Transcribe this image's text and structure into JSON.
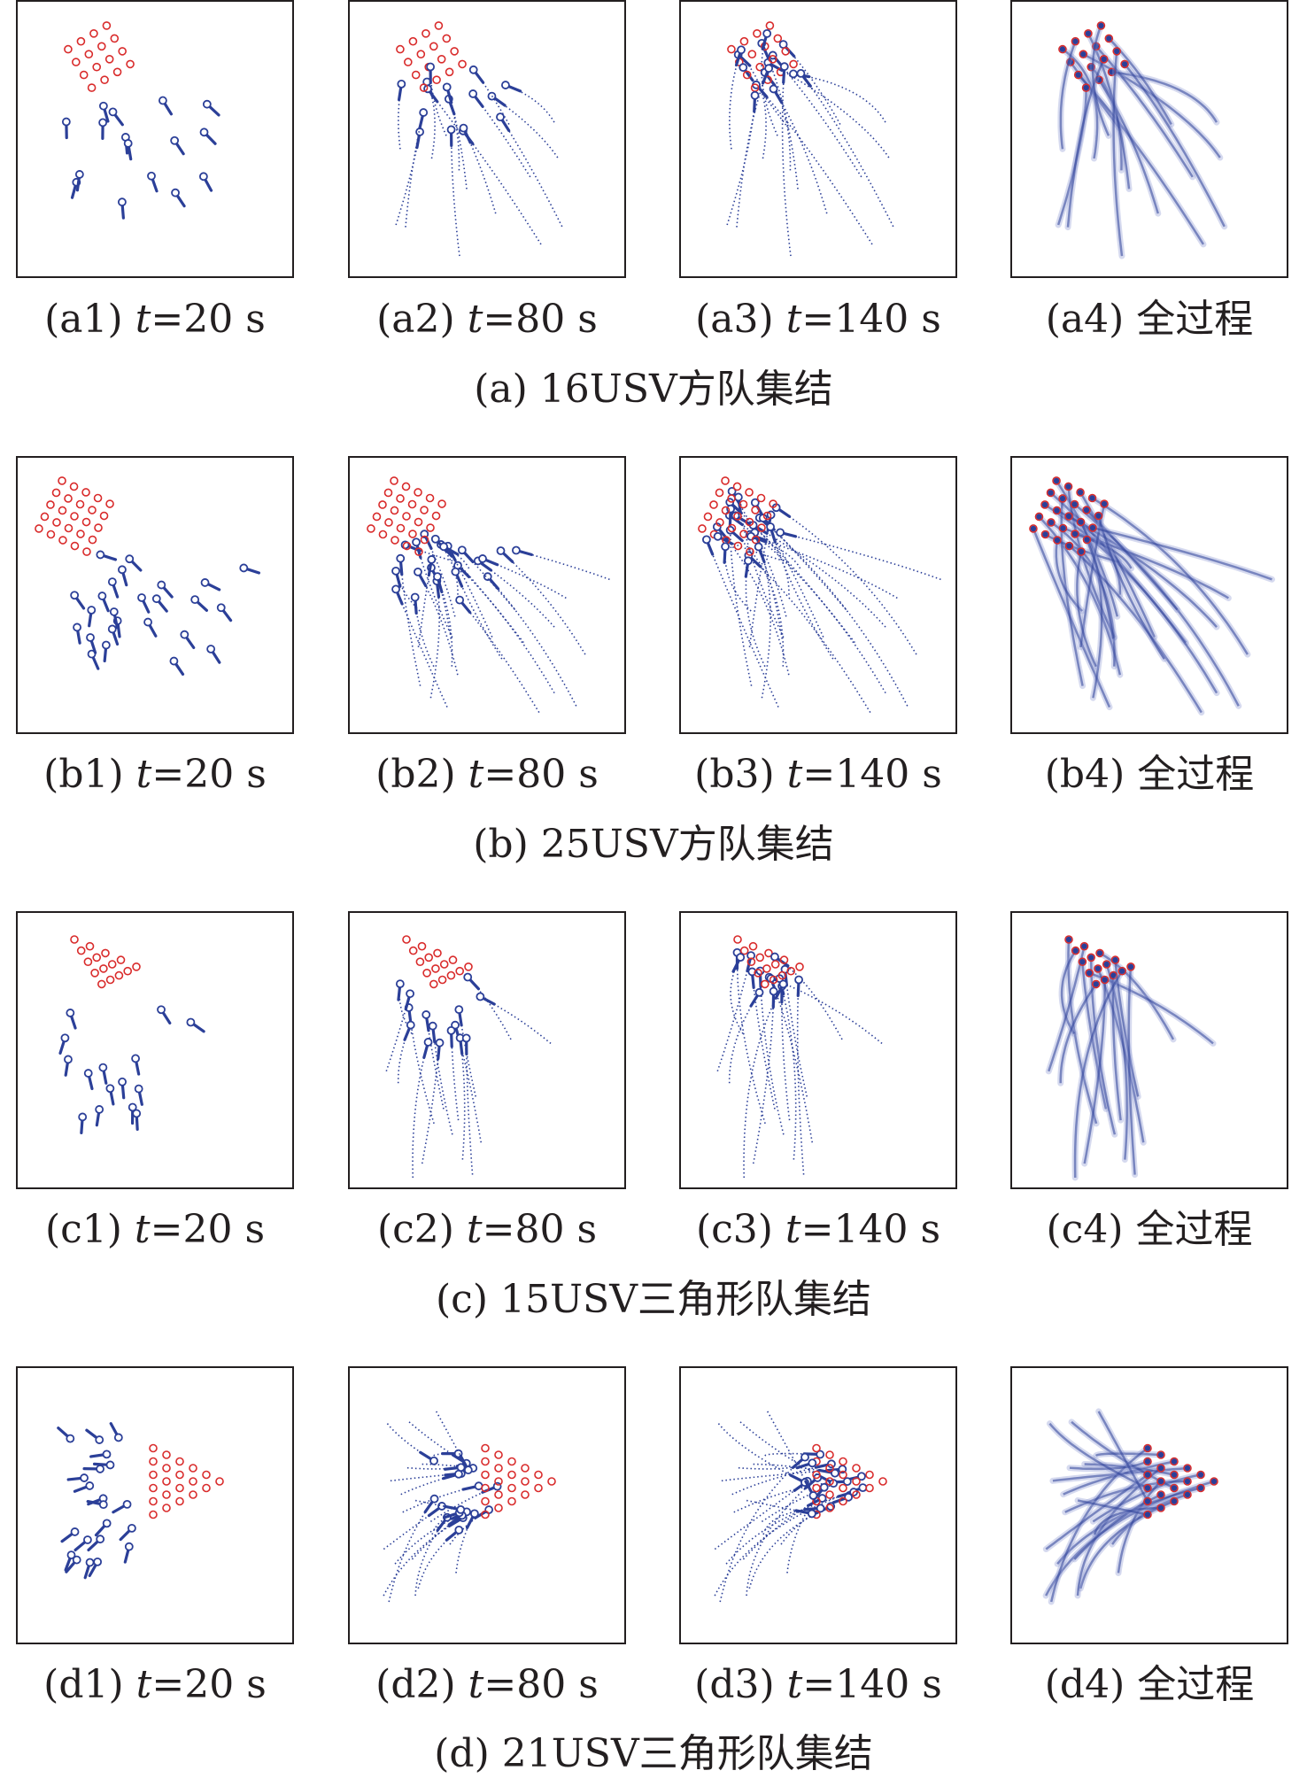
{
  "rows": [
    {
      "id": "a",
      "caption": "(a) 16USV方队集结",
      "panels": [
        {
          "label": "(a1)",
          "t": "20"
        },
        {
          "label": "(a2)",
          "t": "80"
        },
        {
          "label": "(a3)",
          "t": "140"
        },
        {
          "label": "(a4)",
          "text": "全过程"
        }
      ]
    },
    {
      "id": "b",
      "caption": "(b) 25USV方队集结",
      "panels": [
        {
          "label": "(b1)",
          "t": "20"
        },
        {
          "label": "(b2)",
          "t": "80"
        },
        {
          "label": "(b3)",
          "t": "140"
        },
        {
          "label": "(b4)",
          "text": "全过程"
        }
      ]
    },
    {
      "id": "c",
      "caption": "(c) 15USV三角形队集结",
      "panels": [
        {
          "label": "(c1)",
          "t": "20"
        },
        {
          "label": "(c2)",
          "t": "80"
        },
        {
          "label": "(c3)",
          "t": "140"
        },
        {
          "label": "(c4)",
          "text": "全过程"
        }
      ]
    },
    {
      "id": "d",
      "caption": "(d) 21USV三角形队集结",
      "panels": [
        {
          "label": "(d1)",
          "t": "20"
        },
        {
          "label": "(d2)",
          "t": "80"
        },
        {
          "label": "(d3)",
          "t": "140"
        },
        {
          "label": "(d4)",
          "text": "全过程"
        }
      ]
    }
  ],
  "time_symbol": "t",
  "time_unit": "s",
  "colors": {
    "usv_blue": "#2b3f98",
    "target_red": "#d92b2b",
    "border": "#231f20",
    "trail_faded": "#8a95d0"
  }
}
